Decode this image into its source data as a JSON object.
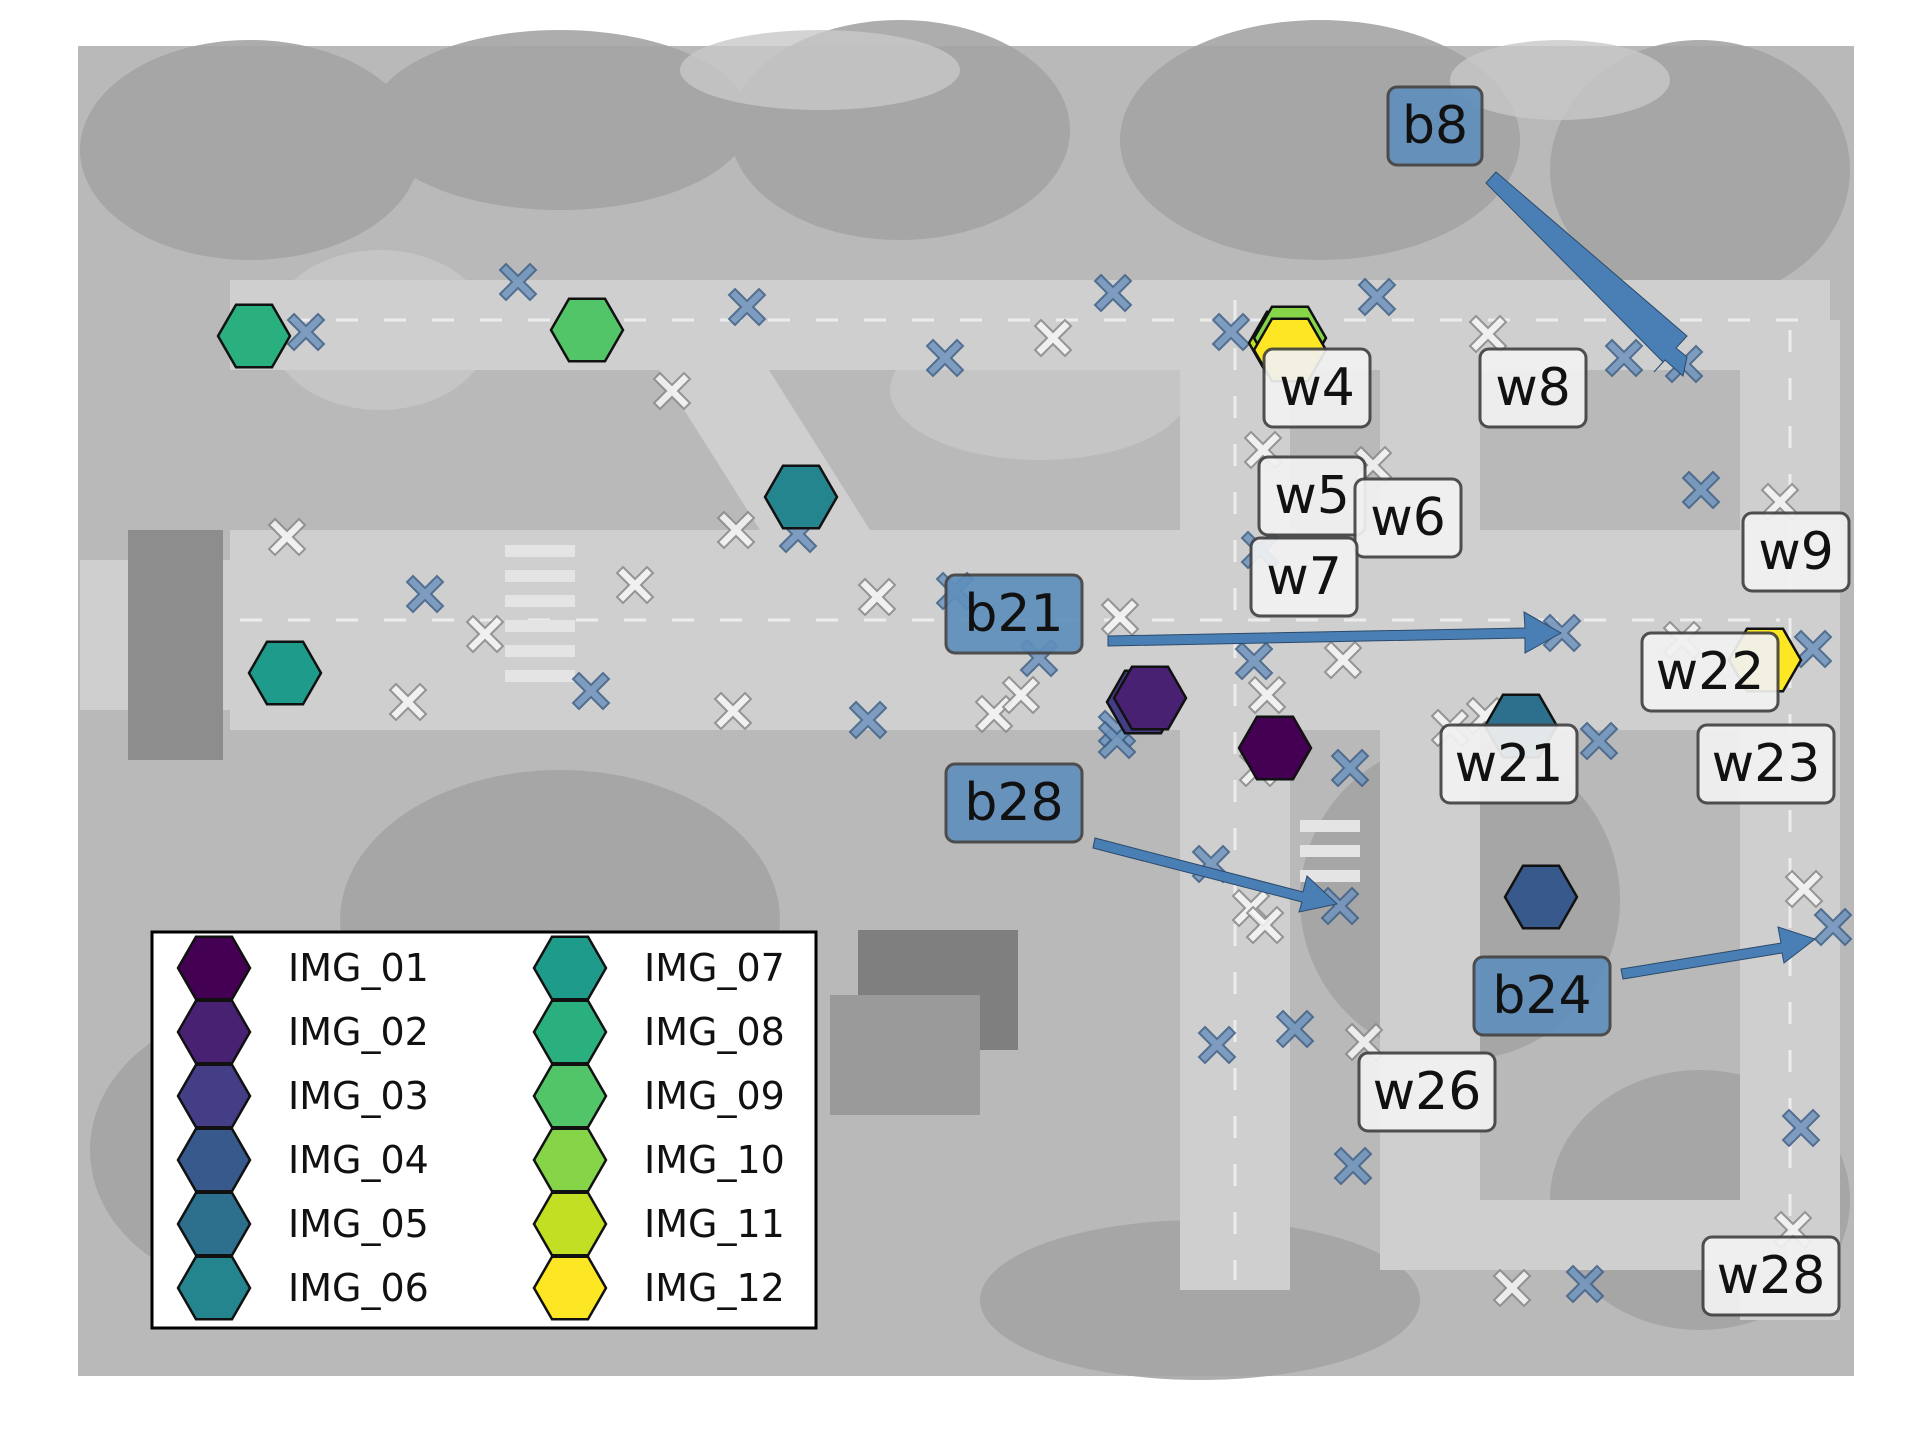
{
  "colors": {
    "blue_marker": "#6f94bd",
    "blue_marker_edge": "#3d5f86",
    "white_marker": "#f6f6f6",
    "white_marker_edge": "#8a8a8a",
    "arrow": "#4a7fb5",
    "label_blue": "#5f8fbc",
    "label_white": "#f2f2f2"
  },
  "legend": {
    "entries": [
      {
        "label": "IMG_01",
        "color": "#440154"
      },
      {
        "label": "IMG_02",
        "color": "#482173"
      },
      {
        "label": "IMG_03",
        "color": "#433e85"
      },
      {
        "label": "IMG_04",
        "color": "#38598c"
      },
      {
        "label": "IMG_05",
        "color": "#2d708e"
      },
      {
        "label": "IMG_06",
        "color": "#25858e"
      },
      {
        "label": "IMG_07",
        "color": "#1e9b8a"
      },
      {
        "label": "IMG_08",
        "color": "#2ab07f"
      },
      {
        "label": "IMG_09",
        "color": "#52c569"
      },
      {
        "label": "IMG_10",
        "color": "#86d549"
      },
      {
        "label": "IMG_11",
        "color": "#c2df23"
      },
      {
        "label": "IMG_12",
        "color": "#fde725"
      }
    ]
  },
  "blue_labels": [
    "b8",
    "b21",
    "b28",
    "b24"
  ],
  "white_labels": [
    "w4",
    "w8",
    "w5",
    "w6",
    "w7",
    "w9",
    "w22",
    "w21",
    "w23",
    "w26",
    "w28"
  ]
}
